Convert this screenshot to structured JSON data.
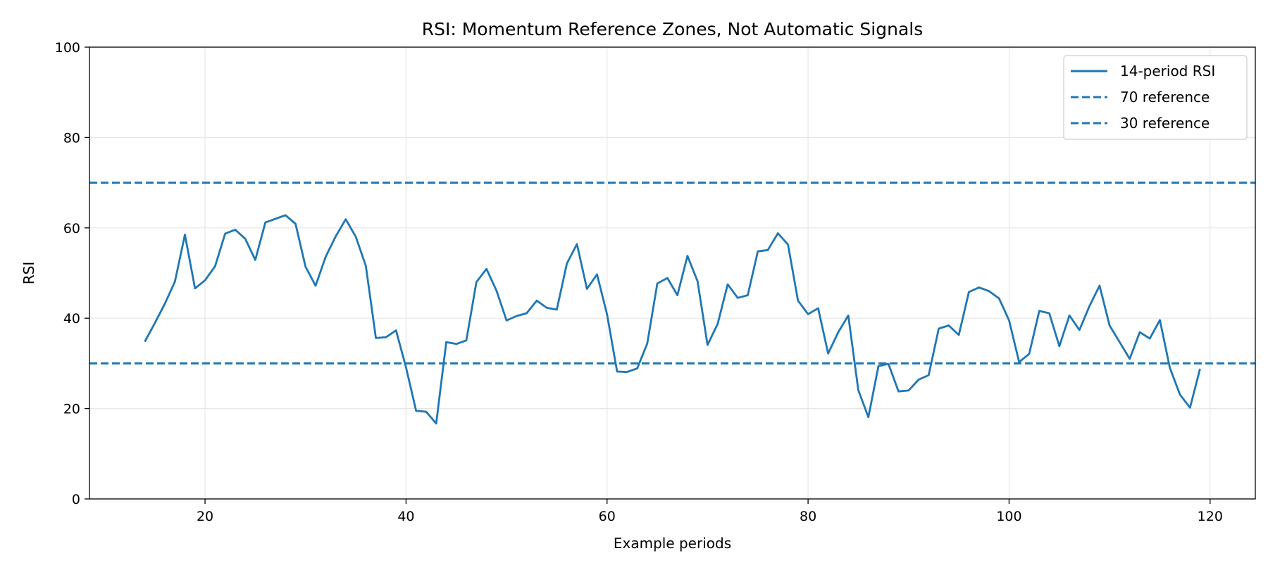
{
  "chart_data": {
    "type": "line",
    "title": "RSI: Momentum Reference Zones, Not Automatic Signals",
    "xlabel": "Example periods",
    "ylabel": "RSI",
    "xlim": [
      8.5,
      124.5
    ],
    "ylim": [
      0,
      100
    ],
    "xticks": [
      20,
      40,
      60,
      80,
      100,
      120
    ],
    "yticks": [
      0,
      20,
      40,
      60,
      80,
      100
    ],
    "grid": true,
    "legend_position": "top-right",
    "series": [
      {
        "name": "14-period RSI",
        "style": "solid",
        "color": "#1f77b4",
        "x": [
          14,
          15,
          16,
          17,
          18,
          19,
          20,
          21,
          22,
          23,
          24,
          25,
          26,
          27,
          28,
          29,
          30,
          31,
          32,
          33,
          34,
          35,
          36,
          37,
          38,
          39,
          40,
          41,
          42,
          43,
          44,
          45,
          46,
          47,
          48,
          49,
          50,
          51,
          52,
          53,
          54,
          55,
          56,
          57,
          58,
          59,
          60,
          61,
          62,
          63,
          64,
          65,
          66,
          67,
          68,
          69,
          70,
          71,
          72,
          73,
          74,
          75,
          76,
          77,
          78,
          79,
          80,
          81,
          82,
          83,
          84,
          85,
          86,
          87,
          88,
          89,
          90,
          91,
          92,
          93,
          94,
          95,
          96,
          97,
          98,
          99,
          100,
          101,
          102,
          103,
          104,
          105,
          106,
          107,
          108,
          109,
          110,
          111,
          112,
          113,
          114,
          115,
          116,
          117,
          118,
          119
        ],
        "y": [
          34.8,
          38.9,
          43.2,
          48.1,
          58.5,
          46.6,
          48.4,
          51.5,
          58.7,
          59.6,
          57.6,
          52.9,
          61.2,
          62.0,
          62.8,
          60.9,
          51.4,
          47.2,
          53.6,
          58.1,
          61.9,
          58.0,
          51.6,
          35.6,
          35.8,
          37.3,
          29.1,
          19.5,
          19.3,
          16.7,
          34.7,
          34.3,
          35.1,
          48.0,
          50.9,
          46.1,
          39.5,
          40.5,
          41.1,
          43.9,
          42.3,
          41.9,
          52.1,
          56.4,
          46.5,
          49.7,
          40.8,
          28.2,
          28.1,
          28.9,
          34.4,
          47.7,
          48.9,
          45.1,
          53.8,
          48.2,
          34.1,
          38.7,
          47.5,
          44.5,
          45.1,
          54.8,
          55.1,
          58.8,
          56.3,
          43.9,
          40.9,
          42.2,
          32.2,
          36.9,
          40.6,
          24.1,
          18.1,
          29.4,
          29.9,
          23.8,
          24.0,
          26.4,
          27.4,
          37.7,
          38.4,
          36.3,
          45.8,
          46.8,
          46.0,
          44.4,
          39.5,
          30.3,
          32.1,
          41.6,
          41.1,
          33.8,
          40.6,
          37.4,
          42.7,
          47.2,
          38.4,
          34.7,
          31.0,
          36.9,
          35.5,
          39.6,
          29.0,
          23.1,
          20.2,
          28.8
        ]
      },
      {
        "name": "70 reference",
        "style": "dashed",
        "color": "#1f77b4",
        "y_constant": 70
      },
      {
        "name": "30 reference",
        "style": "dashed",
        "color": "#1f77b4",
        "y_constant": 30
      }
    ]
  }
}
